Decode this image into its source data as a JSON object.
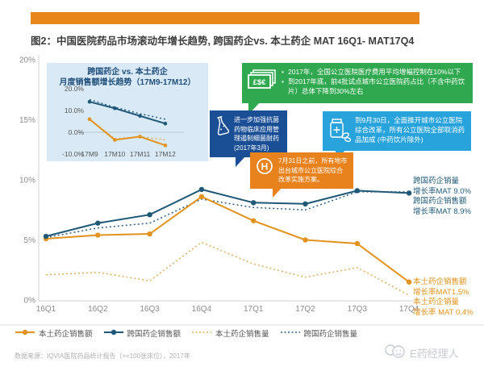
{
  "figure_title": "图2：中国医院药品市场滚动年增长趋势, 跨国药企vs. 本土药企 MAT 16Q1- MAT17Q4",
  "colors": {
    "orange": "#E2921E",
    "orange_light": "#DCB063",
    "blue": "#1F5876",
    "blue_dashed": "#2E5E86",
    "top_bar": "#E8861B",
    "green_box": "#2FA84F",
    "darkblue_box": "#1A4F96",
    "lightblue_box": "#29A3DC",
    "orange_box": "#E8821C",
    "axis_text": "#8C8C8C"
  },
  "chart_data": [
    {
      "type": "line",
      "title": "中国医院药品市场滚动年增长趋势 MAT 16Q1- MAT17Q4",
      "categories": [
        "16Q1",
        "16Q2",
        "16Q3",
        "16Q4",
        "17Q1",
        "17Q2",
        "17Q3",
        "17Q4"
      ],
      "ytick_values": [
        0,
        5,
        10,
        15,
        20
      ],
      "ytick_labels": [
        "0%",
        "5%",
        "10%",
        "15%",
        "20%"
      ],
      "ylim": [
        0,
        20
      ],
      "series": [
        {
          "name": "本土药企销售额",
          "style": "solid",
          "color_key": "orange",
          "values": [
            5.1,
            5.4,
            5.5,
            8.6,
            6.6,
            5.0,
            4.7,
            1.5
          ]
        },
        {
          "name": "跨国药企销售额",
          "style": "solid",
          "color_key": "blue",
          "values": [
            5.3,
            6.4,
            7.1,
            9.2,
            8.1,
            8.0,
            9.1,
            8.9
          ]
        },
        {
          "name": "本土药企销售量",
          "style": "dashed",
          "color_key": "orange_light",
          "values": [
            2.1,
            2.3,
            1.6,
            4.8,
            3.0,
            1.9,
            2.7,
            0.4
          ]
        },
        {
          "name": "跨国药企销售量",
          "style": "dashed",
          "color_key": "blue_dashed",
          "values": [
            5.2,
            6.0,
            6.4,
            8.4,
            7.7,
            7.5,
            9.0,
            9.0
          ]
        }
      ]
    },
    {
      "type": "line",
      "title_lines": [
        "跨国药企 vs. 本土药企",
        "月度销售额增长趋势（17M9-17M12）"
      ],
      "categories": [
        "17M9",
        "17M10",
        "17M11",
        "17M12"
      ],
      "ytick_values": [
        20,
        10,
        0
      ],
      "ytick_labels": [
        "20.0%",
        "10.0%",
        "0.0%"
      ],
      "ytick_bottom_value": -10,
      "ytick_bottom_label": "-10.0%",
      "ylim": [
        -10,
        20
      ],
      "series": [
        {
          "name": "跨国药企销售额",
          "style": "solid",
          "color_key": "blue",
          "values": [
            14,
            11,
            7.5,
            4
          ]
        },
        {
          "name": "跨国药企销售量",
          "style": "dashed",
          "color_key": "blue_dashed",
          "values": [
            15,
            11.5,
            8.5,
            6
          ]
        },
        {
          "name": "本土药企销售额",
          "style": "solid",
          "color_key": "orange",
          "values": [
            6,
            -3.5,
            -2,
            -6
          ]
        },
        {
          "name": "本土药企销售量",
          "style": "dashed",
          "color_key": "orange_light",
          "values": [
            6,
            -3,
            -2,
            -3.5
          ]
        }
      ]
    }
  ],
  "callouts": [
    {
      "icon": "banknotes-icon",
      "bullets": [
        "2017年，全国公立医院医疗费用平均增幅控制在10%以下",
        "到2017年底，前4批试点城市公立医院药占比（不含中药饮片）总体下降到30%左右"
      ]
    },
    {
      "icon": "flask-icon",
      "text": "进一步加强抗菌药物临床应用管理遏制细菌耐药 (2017年3月)"
    },
    {
      "icon": "medicine-bottle-icon",
      "text": "到9月30日，全面推开城市公立医院综合改革，所有公立医院全部取消药品加成 (中药饮片除外)"
    },
    {
      "icon": "hospital-icon",
      "text": "7月31日之前，所有地市出台城市公立医院综合改革实施方案。"
    }
  ],
  "right_labels": [
    {
      "lines": [
        "跨国药企销量",
        "增长率MAT 9.0%"
      ],
      "color_key": "blue"
    },
    {
      "lines": [
        "跨国药企销售额",
        "增长率MAT 8.9%"
      ],
      "color_key": "blue"
    },
    {
      "lines": [
        "本土药企销售额",
        "增长率MAT1.5%"
      ],
      "color_key": "orange"
    },
    {
      "lines": [
        "本土药企销量",
        "增长率 MAT 0.4%"
      ],
      "color_key": "orange"
    }
  ],
  "legend": {
    "items": [
      {
        "label": "本土药企销售额",
        "color_key": "orange",
        "style": "solid"
      },
      {
        "label": "跨国药企销售额",
        "color_key": "blue",
        "style": "solid"
      },
      {
        "label": "本土药企销售量",
        "color_key": "orange_light",
        "style": "dashed"
      },
      {
        "label": "跨国药企销售量",
        "color_key": "blue_dashed",
        "style": "dashed"
      }
    ]
  },
  "footer": {
    "source": "数据来源：IQVIA医院药品统计报告（>=100张床位），2017年"
  },
  "watermark": {
    "text": "E药经理人"
  }
}
